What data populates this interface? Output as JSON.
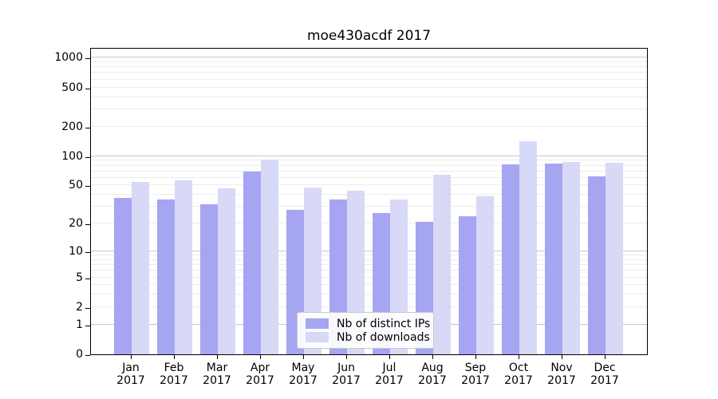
{
  "chart_data": {
    "type": "bar",
    "title": "moe430acdf 2017",
    "categories": [
      "Jan",
      "Feb",
      "Mar",
      "Apr",
      "May",
      "Jun",
      "Jul",
      "Aug",
      "Sep",
      "Oct",
      "Nov",
      "Dec"
    ],
    "year_label": "2017",
    "series": [
      {
        "name": "Nb of distinct IPs",
        "color": "#a5a5f2",
        "values": [
          37,
          36,
          32,
          70,
          28,
          36,
          26,
          21,
          24,
          83,
          84,
          62
        ]
      },
      {
        "name": "Nb of downloads",
        "color": "#d8d8f7",
        "values": [
          54,
          56,
          47,
          92,
          48,
          44,
          36,
          65,
          39,
          143,
          87,
          85
        ]
      }
    ],
    "xlabel": "",
    "ylabel": "",
    "y_ticks": [
      0,
      1,
      2,
      5,
      10,
      20,
      50,
      100,
      200,
      500,
      1000
    ],
    "y_scale": "log10(value+1)",
    "ylim": [
      0,
      1265
    ],
    "grid": "horizontal; major lines at 1,10,100,1000; minor lines at 2-9,20-90,200-900",
    "legend_position": "inside bottom-center",
    "colors": {
      "axis": "#000000",
      "major_grid": "#c8c8c8",
      "minor_grid": "#ececec",
      "background": "#ffffff",
      "text": "#000000"
    }
  }
}
